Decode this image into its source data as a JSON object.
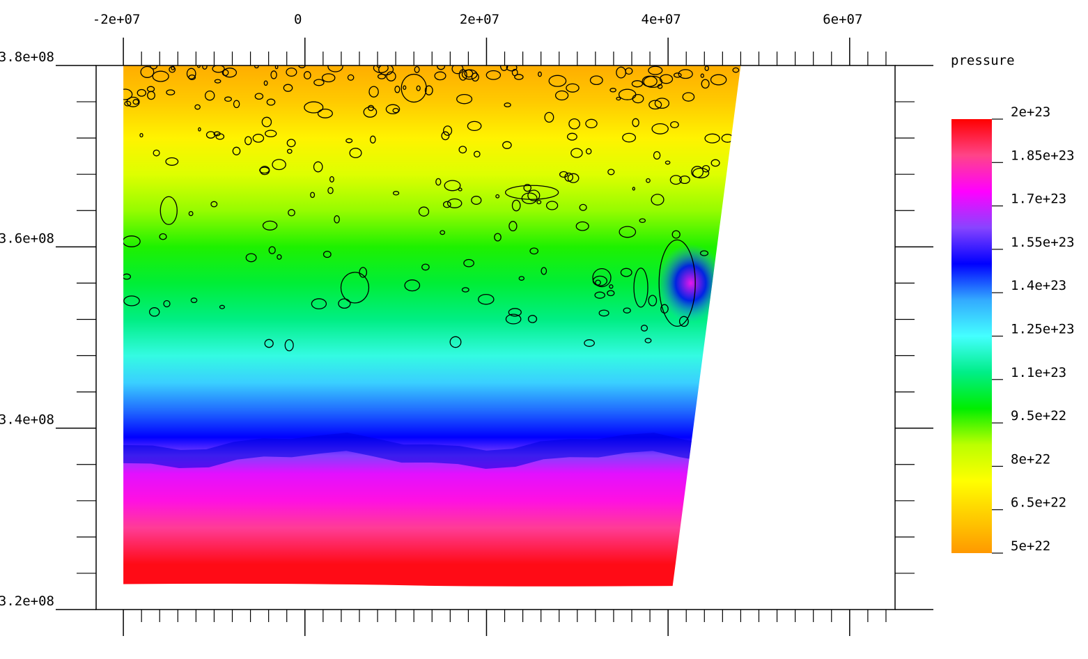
{
  "chart_data": {
    "type": "heatmap",
    "title": "",
    "xlabel": "",
    "ylabel": "",
    "xlim": [
      -23000000.0,
      65000000.0
    ],
    "ylim": [
      320000000.0,
      380000000.0
    ],
    "x_ticks": [
      {
        "value": -20000000.0,
        "label": "-2e+07"
      },
      {
        "value": 0,
        "label": "0"
      },
      {
        "value": 20000000.0,
        "label": "2e+07"
      },
      {
        "value": 40000000.0,
        "label": "4e+07"
      },
      {
        "value": 60000000.0,
        "label": "6e+07"
      }
    ],
    "y_ticks": [
      {
        "value": 380000000.0,
        "label": "3.8e+08"
      },
      {
        "value": 360000000.0,
        "label": "3.6e+08"
      },
      {
        "value": 340000000.0,
        "label": "3.4e+08"
      },
      {
        "value": 320000000.0,
        "label": "3.2e+08"
      }
    ],
    "domain_corners": {
      "top_left": [
        -20000000.0,
        380000000.0
      ],
      "top_right": [
        48000000.0,
        380000000.0
      ],
      "bottom_right": [
        40500000.0,
        322600000.0
      ],
      "bottom_left": [
        -20000000.0,
        322800000.0
      ]
    },
    "field_bands": [
      {
        "y": 380000000.0,
        "value": 5.5e+22
      },
      {
        "y": 376000000.0,
        "value": 6.2e+22
      },
      {
        "y": 372000000.0,
        "value": 7.2e+22
      },
      {
        "y": 368000000.0,
        "value": 8.1e+22
      },
      {
        "y": 364000000.0,
        "value": 9e+22
      },
      {
        "y": 360000000.0,
        "value": 9.8e+22
      },
      {
        "y": 356000000.0,
        "value": 1.05e+23
      },
      {
        "y": 352000000.0,
        "value": 1.12e+23
      },
      {
        "y": 348000000.0,
        "value": 1.22e+23
      },
      {
        "y": 345000000.0,
        "value": 1.32e+23
      },
      {
        "y": 342000000.0,
        "value": 1.42e+23
      },
      {
        "y": 339000000.0,
        "value": 1.5e+23
      },
      {
        "y": 337000000.0,
        "value": 1.62e+23
      },
      {
        "y": 335000000.0,
        "value": 1.72e+23
      },
      {
        "y": 332000000.0,
        "value": 1.78e+23
      },
      {
        "y": 329000000.0,
        "value": 1.86e+23
      },
      {
        "y": 325000000.0,
        "value": 1.98e+23
      }
    ],
    "colorbar": {
      "title": "pressure",
      "min": 5e+22,
      "max": 2e+23,
      "labels": [
        "2e+23",
        "1.85e+23",
        "1.7e+23",
        "1.55e+23",
        "1.4e+23",
        "1.25e+23",
        "1.1e+23",
        "9.5e+22",
        "8e+22",
        "6.5e+22",
        "5e+22"
      ],
      "label_values": [
        2e+23,
        1.85e+23,
        1.7e+23,
        1.55e+23,
        1.4e+23,
        1.25e+23,
        1.1e+23,
        9.5e+22,
        8e+22,
        6.5e+22,
        5e+22
      ],
      "colormap": [
        "#ff9900",
        "#ffcc00",
        "#ffff00",
        "#bbff00",
        "#00ee00",
        "#00ee88",
        "#44ffff",
        "#33aaff",
        "#0000ff",
        "#8844ff",
        "#ff00ff",
        "#ff4488",
        "#ff0000"
      ]
    },
    "grid": false
  }
}
